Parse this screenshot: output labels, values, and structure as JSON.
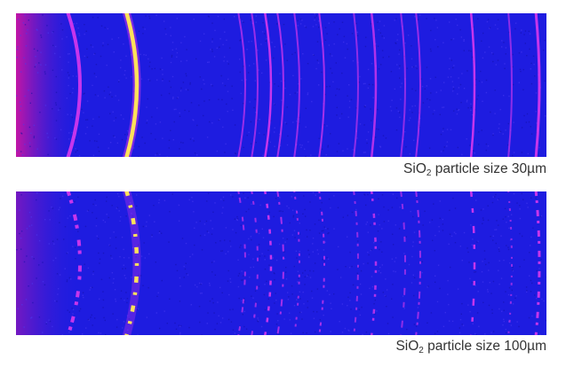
{
  "colors": {
    "background_blue": "#1e1ce0",
    "ring_magenta": "#ff3df0",
    "ring_hot": "#ffe15a",
    "halo_magenta": "#e0149b"
  },
  "panels": [
    {
      "caption": {
        "prefix": "SiO",
        "subscript": "2",
        "suffix": " particle size 30µm"
      },
      "texture": "continuous"
    },
    {
      "caption": {
        "prefix": "SiO",
        "subscript": "2",
        "suffix": " particle size 100µm"
      },
      "texture": "spotty"
    }
  ]
}
